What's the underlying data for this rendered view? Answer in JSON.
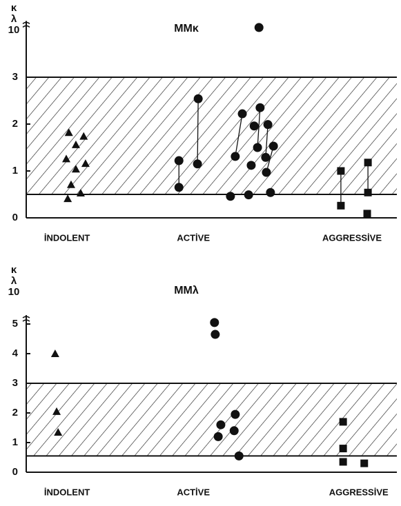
{
  "chart_data": [
    {
      "type": "scatter",
      "title": "MMκ",
      "y_label": [
        "κ",
        "λ",
        "10"
      ],
      "xlim": [
        0,
        100
      ],
      "ylim": [
        0,
        4.2
      ],
      "yticks": [
        0,
        1,
        2,
        3
      ],
      "xticks": [
        {
          "value": 11,
          "label": "İNDOLENT"
        },
        {
          "value": 45.1,
          "label": "ACTİVE"
        },
        {
          "value": 87.9,
          "label": "AGGRESSİVE"
        }
      ],
      "reference_band": [
        0.5,
        3
      ],
      "series": [
        {
          "marker": "triangle",
          "color": "#111111",
          "x": [
            11.5,
            15.5,
            13.4,
            10.8,
            16.0,
            13.4,
            12.1,
            14.7,
            11.2
          ],
          "values": [
            1.82,
            1.74,
            1.56,
            1.26,
            1.16,
            1.04,
            0.71,
            0.53,
            0.41
          ],
          "pairs": []
        },
        {
          "marker": "circle",
          "color": "#111111",
          "x": [
            41.2,
            41.2,
            46.4,
            46.2,
            62.8,
            58.3,
            63.1,
            61.5,
            65.2,
            56.4,
            62.4,
            66.7,
            60.7,
            64.6,
            64.8,
            55.1,
            60.0,
            65.9
          ],
          "values": [
            1.22,
            0.65,
            2.54,
            1.15,
            4.06,
            2.22,
            2.35,
            1.96,
            1.99,
            1.31,
            1.5,
            1.53,
            1.12,
            1.29,
            0.97,
            0.46,
            0.49,
            0.54
          ],
          "pairs": [
            [
              0,
              1
            ],
            [
              2,
              3
            ],
            [
              6,
              10
            ],
            [
              8,
              13
            ],
            [
              11,
              14
            ],
            [
              5,
              9
            ]
          ]
        },
        {
          "marker": "square",
          "color": "#111111",
          "x": [
            84.9,
            84.9,
            92.2,
            92.2,
            92.0
          ],
          "values": [
            1.0,
            0.26,
            1.18,
            0.54,
            0.09
          ],
          "pairs": [
            [
              0,
              1
            ],
            [
              2,
              3
            ]
          ]
        }
      ]
    },
    {
      "type": "scatter",
      "title": "MMλ",
      "y_label": [
        "κ",
        "λ",
        "10"
      ],
      "xlim": [
        0,
        100
      ],
      "ylim": [
        0,
        5.3
      ],
      "yticks": [
        0,
        1,
        2,
        3,
        4,
        5
      ],
      "xticks": [
        {
          "value": 11,
          "label": "İNDOLENT"
        },
        {
          "value": 45.1,
          "label": "ACTİVE"
        },
        {
          "value": 89.7,
          "label": "AGGRESSİVE"
        }
      ],
      "reference_band": [
        0.55,
        3
      ],
      "series": [
        {
          "marker": "triangle",
          "color": "#111111",
          "x": [
            7.8,
            8.2,
            8.6
          ],
          "values": [
            4.0,
            2.05,
            1.35
          ],
          "pairs": []
        },
        {
          "marker": "circle",
          "color": "#111111",
          "x": [
            50.8,
            51.0,
            56.4,
            52.5,
            56.1,
            51.8,
            57.4
          ],
          "values": [
            5.05,
            4.65,
            1.95,
            1.6,
            1.4,
            1.2,
            0.55
          ],
          "pairs": []
        },
        {
          "marker": "square",
          "color": "#111111",
          "x": [
            85.5,
            85.5,
            85.5,
            91.2
          ],
          "values": [
            1.7,
            0.8,
            0.35,
            0.3
          ],
          "pairs": []
        }
      ]
    }
  ]
}
